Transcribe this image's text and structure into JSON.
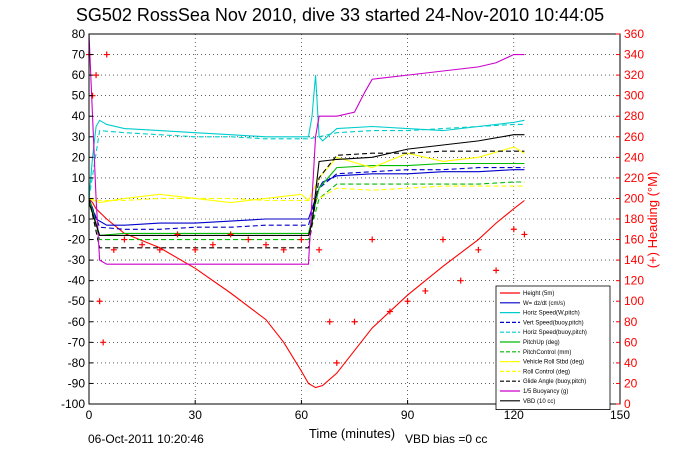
{
  "chart_data": {
    "type": "line",
    "title": "SG502 RossSea Nov 2010, dive 33 started 24-Nov-2010 10:44:05",
    "xlabel": "Time (minutes)",
    "ylabel_right": "(+) Heading (°M)",
    "xlim": [
      0,
      150
    ],
    "ylim_left": [
      -100,
      80
    ],
    "ylim_right": [
      0,
      360
    ],
    "xticks": [
      "0",
      "30",
      "60",
      "90",
      "120",
      "150"
    ],
    "yticks_left": [
      "80",
      "70",
      "60",
      "50",
      "40",
      "30",
      "20",
      "10",
      "0",
      "-10",
      "-20",
      "-30",
      "-40",
      "-50",
      "-60",
      "-70",
      "-80",
      "-90",
      "-100"
    ],
    "yticks_right": [
      "360",
      "340",
      "320",
      "300",
      "280",
      "260",
      "240",
      "220",
      "200",
      "180",
      "160",
      "140",
      "120",
      "100",
      "80",
      "60",
      "40",
      "20",
      "0"
    ],
    "grid": true,
    "legend_position": "bottom-right",
    "footer_timestamp": "06-Oct-2011 10:20:46",
    "footer_note": "VBD bias =0 cc",
    "series": [
      {
        "name": "Height (5m)",
        "color": "#ff0000",
        "style": "solid",
        "x": [
          0,
          1,
          2,
          5,
          10,
          20,
          30,
          40,
          50,
          55,
          60,
          62,
          64,
          66,
          70,
          80,
          90,
          100,
          110,
          115,
          120,
          123
        ],
        "y": [
          0,
          -2,
          -5,
          -10,
          -17,
          -24,
          -34,
          -46,
          -59,
          -70,
          -84,
          -90,
          -92,
          -91,
          -85,
          -63,
          -47,
          -33,
          -20,
          -12,
          -5,
          -1
        ]
      },
      {
        "name": "W= dz/dt (cm/s)",
        "color": "#0000cc",
        "style": "solid",
        "x": [
          0,
          1,
          2,
          5,
          10,
          20,
          30,
          40,
          50,
          55,
          60,
          62,
          63,
          64,
          65,
          66,
          70,
          80,
          90,
          100,
          110,
          120,
          123
        ],
        "y": [
          0,
          -5,
          -10,
          -13,
          -13,
          -12,
          -12,
          -11,
          -10,
          -10,
          -10,
          -10,
          -5,
          0,
          5,
          8,
          11,
          12,
          12,
          13,
          13,
          14,
          14
        ]
      },
      {
        "name": "Horiz Speed(W,pitch)",
        "color": "#00cccc",
        "style": "solid",
        "x": [
          0,
          1,
          2,
          3,
          5,
          10,
          20,
          30,
          40,
          50,
          55,
          60,
          62,
          63,
          64,
          65,
          66,
          70,
          80,
          90,
          100,
          110,
          120,
          123
        ],
        "y": [
          0,
          20,
          35,
          38,
          36,
          34,
          33,
          32,
          31,
          30,
          30,
          30,
          30,
          40,
          60,
          30,
          28,
          34,
          35,
          34,
          33,
          35,
          37,
          38
        ]
      },
      {
        "name": "Vert Speed(buoy,pitch)",
        "color": "#0000cc",
        "style": "dash",
        "x": [
          0,
          3,
          10,
          20,
          30,
          40,
          50,
          60,
          62,
          65,
          70,
          80,
          90,
          100,
          110,
          120,
          123
        ],
        "y": [
          0,
          -14,
          -15,
          -15,
          -14,
          -14,
          -13,
          -13,
          -13,
          5,
          12,
          13,
          14,
          14,
          15,
          15,
          15
        ]
      },
      {
        "name": "Horiz Speed(buoy,pitch)",
        "color": "#00cccc",
        "style": "dash",
        "x": [
          0,
          3,
          10,
          20,
          30,
          40,
          50,
          60,
          62,
          65,
          70,
          80,
          90,
          100,
          110,
          120,
          123
        ],
        "y": [
          0,
          33,
          32,
          31,
          30,
          30,
          29,
          29,
          29,
          30,
          32,
          33,
          33,
          34,
          35,
          36,
          36
        ]
      },
      {
        "name": "PitchUp (deg)",
        "color": "#00bb00",
        "style": "solid",
        "x": [
          0,
          3,
          10,
          20,
          30,
          40,
          50,
          60,
          62,
          65,
          70,
          80,
          90,
          100,
          110,
          120,
          123
        ],
        "y": [
          0,
          -18,
          -17,
          -17,
          -17,
          -17,
          -17,
          -17,
          -17,
          5,
          15,
          16,
          16,
          17,
          17,
          17,
          17
        ]
      },
      {
        "name": "PitchControl (mm)",
        "color": "#00bb00",
        "style": "dash",
        "x": [
          0,
          3,
          10,
          20,
          30,
          40,
          50,
          60,
          62,
          65,
          70,
          80,
          90,
          100,
          110,
          120,
          123
        ],
        "y": [
          0,
          -20,
          -20,
          -20,
          -20,
          -20,
          -20,
          -20,
          -20,
          0,
          7,
          7,
          7,
          7,
          7,
          8,
          8
        ]
      },
      {
        "name": "Vehicle Roll Stbd (deg)",
        "color": "#ffff00",
        "style": "solid",
        "x": [
          0,
          3,
          10,
          20,
          30,
          40,
          50,
          60,
          62,
          65,
          70,
          80,
          90,
          100,
          110,
          120,
          123
        ],
        "y": [
          0,
          -2,
          0,
          2,
          0,
          -2,
          0,
          2,
          -1,
          10,
          20,
          15,
          22,
          18,
          20,
          25,
          22
        ]
      },
      {
        "name": "Roll Control (deg)",
        "color": "#ffff00",
        "style": "dash",
        "x": [
          0,
          3,
          10,
          20,
          30,
          40,
          50,
          60,
          62,
          65,
          70,
          80,
          90,
          100,
          110,
          120,
          123
        ],
        "y": [
          0,
          -1,
          -1,
          0,
          0,
          0,
          -1,
          -1,
          -1,
          0,
          5,
          4,
          5,
          6,
          6,
          6,
          6
        ]
      },
      {
        "name": "Glide Angle (buoy,pitch)",
        "color": "#000000",
        "style": "dash",
        "x": [
          0,
          3,
          10,
          20,
          30,
          40,
          50,
          60,
          62,
          65,
          70,
          80,
          90,
          100,
          110,
          120,
          123
        ],
        "y": [
          0,
          -24,
          -24,
          -24,
          -24,
          -24,
          -24,
          -24,
          -24,
          10,
          21,
          22,
          22,
          23,
          23,
          23,
          23
        ]
      },
      {
        "name": "1/5 Buoyancy (g)",
        "color": "#cc00cc",
        "style": "solid",
        "x": [
          0,
          1,
          2,
          3,
          5,
          10,
          20,
          30,
          40,
          50,
          60,
          62,
          63,
          64,
          65,
          70,
          75,
          78,
          80,
          90,
          100,
          110,
          115,
          120,
          123
        ],
        "y": [
          80,
          40,
          0,
          -30,
          -32,
          -32,
          -32,
          -32,
          -32,
          -32,
          -32,
          -32,
          0,
          30,
          40,
          40,
          42,
          52,
          58,
          60,
          62,
          64,
          66,
          70,
          70
        ]
      },
      {
        "name": "VBD (10 cc)",
        "color": "#000000",
        "style": "solid",
        "x": [
          0,
          3,
          10,
          20,
          30,
          40,
          50,
          60,
          62,
          63,
          65,
          70,
          80,
          90,
          100,
          110,
          120,
          123
        ],
        "y": [
          -2,
          -18,
          -18,
          -18,
          -18,
          -18,
          -18,
          -18,
          -18,
          -12,
          18,
          19,
          20,
          24,
          26,
          28,
          31,
          31
        ]
      },
      {
        "name": "(+) Heading (°M)",
        "color": "#ff0000",
        "style": "plus",
        "axis": "right",
        "x": [
          0,
          1,
          2,
          3,
          4,
          5,
          7,
          10,
          15,
          20,
          25,
          30,
          35,
          40,
          45,
          50,
          55,
          60,
          65,
          68,
          70,
          75,
          80,
          85,
          90,
          95,
          100,
          105,
          110,
          115,
          120,
          123
        ],
        "y": [
          340,
          300,
          320,
          100,
          60,
          340,
          150,
          160,
          155,
          150,
          165,
          150,
          155,
          165,
          160,
          155,
          150,
          160,
          150,
          80,
          40,
          80,
          160,
          90,
          100,
          110,
          160,
          120,
          150,
          130,
          170,
          165
        ]
      }
    ]
  }
}
